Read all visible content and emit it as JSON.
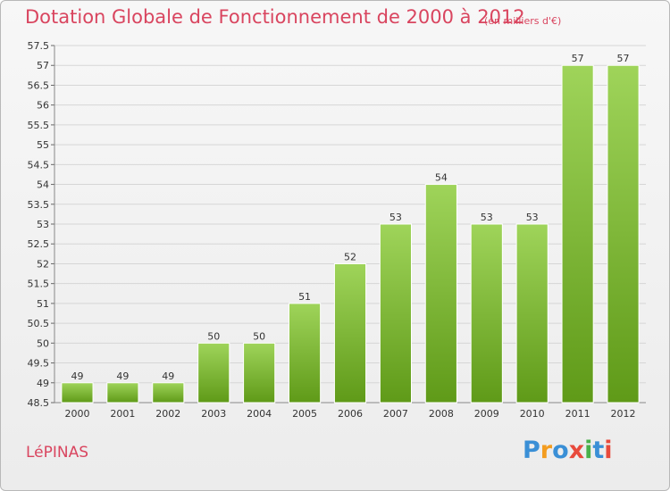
{
  "header": {
    "title": "Dotation Globale de Fonctionnement de 2000 à 2012",
    "unit": "(en milliers d'€)"
  },
  "footer": {
    "commune": "LéPINAS",
    "logo_letters": [
      "P",
      "r",
      "o",
      "x",
      "i",
      "t",
      "i"
    ]
  },
  "colors": {
    "bar_top": "#9fd45a",
    "bar_bottom": "#5f9a18",
    "title": "#d9455f",
    "logo": [
      "#3a8fd6",
      "#f39c1f",
      "#3a8fd6",
      "#e84a3c",
      "#49b04a",
      "#3a8fd6",
      "#e84a3c"
    ]
  },
  "chart_data": {
    "type": "bar",
    "title": "Dotation Globale de Fonctionnement de 2000 à 2012",
    "categories": [
      "2000",
      "2001",
      "2002",
      "2003",
      "2004",
      "2005",
      "2006",
      "2007",
      "2008",
      "2009",
      "2010",
      "2011",
      "2012"
    ],
    "values": [
      49,
      49,
      49,
      50,
      50,
      51,
      52,
      53,
      54,
      53,
      53,
      57,
      57
    ],
    "ylim": [
      48.5,
      57.5
    ],
    "yticks": [
      "48.5",
      "49",
      "49.5",
      "50",
      "50.5",
      "51",
      "51.5",
      "52",
      "52.5",
      "53",
      "53.5",
      "54",
      "54.5",
      "55",
      "55.5",
      "56",
      "56.5",
      "57",
      "57.5"
    ],
    "grid": true,
    "legend": "none"
  }
}
